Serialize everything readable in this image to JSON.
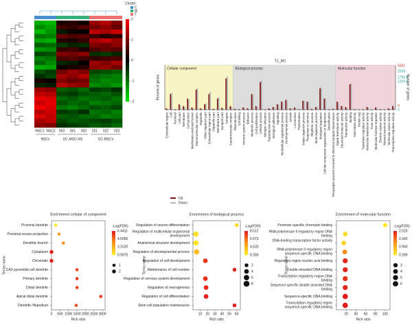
{
  "chart_data": [
    {
      "type": "heatmap",
      "columns": [
        "NSC1",
        "NSC2",
        "003",
        "001",
        "002",
        "021",
        "022",
        "023"
      ],
      "groups": [
        {
          "name": "NSCs",
          "count": 2
        },
        {
          "name": "UC-MSC-NS",
          "count": 3
        },
        {
          "name": "UC-MSCs",
          "count": 3
        }
      ],
      "column_clusters": [
        "C",
        "C",
        "M",
        "M",
        "M",
        "T",
        "T",
        "T"
      ],
      "cluster_legend": {
        "title": "Cluster",
        "items": [
          {
            "name": "C",
            "color": "#4a8fd0"
          },
          {
            "name": "M",
            "color": "#35b07a"
          },
          {
            "name": "T",
            "color": "#f07070"
          }
        ]
      },
      "clim": [
        -2,
        2
      ],
      "cticks": [
        2,
        1,
        0,
        -1,
        -2
      ],
      "matrix": [
        [
          -1.5,
          -1.6,
          0.2,
          0.3,
          0.1,
          1.2,
          1.4,
          1.0
        ],
        [
          -1.2,
          -1.4,
          0.5,
          0.4,
          0.6,
          0.9,
          1.1,
          0.8
        ],
        [
          -1.6,
          -1.3,
          -0.2,
          0.1,
          0.0,
          1.5,
          1.3,
          1.6
        ],
        [
          -1.0,
          -1.1,
          0.8,
          0.6,
          0.7,
          0.5,
          0.3,
          0.4
        ],
        [
          -1.4,
          -1.5,
          0.3,
          0.2,
          0.4,
          1.3,
          1.5,
          1.2
        ],
        [
          -0.8,
          -0.9,
          -0.5,
          -0.3,
          -0.4,
          1.0,
          0.9,
          1.1
        ],
        [
          -1.3,
          -1.2,
          0.4,
          0.5,
          0.2,
          0.6,
          0.8,
          0.7
        ],
        [
          -0.6,
          -0.7,
          1.0,
          0.9,
          1.1,
          -0.4,
          -0.5,
          -0.3
        ],
        [
          -1.1,
          -1.0,
          0.6,
          0.7,
          0.5,
          0.4,
          0.5,
          0.6
        ],
        [
          -0.9,
          -1.2,
          -0.3,
          -0.2,
          0.0,
          1.2,
          1.0,
          1.3
        ],
        [
          -1.5,
          -1.4,
          0.1,
          0.2,
          0.3,
          1.1,
          1.2,
          0.9
        ],
        [
          -0.7,
          -0.5,
          0.9,
          1.2,
          1.0,
          -0.6,
          -0.7,
          -0.8
        ],
        [
          -0.4,
          -0.6,
          1.3,
          1.1,
          1.4,
          -0.9,
          -1.0,
          -1.1
        ],
        [
          0.2,
          0.1,
          1.0,
          0.8,
          0.9,
          -1.0,
          -1.2,
          -1.1
        ],
        [
          -0.3,
          -0.2,
          1.4,
          1.2,
          1.1,
          -1.2,
          -1.1,
          -1.3
        ],
        [
          1.2,
          1.1,
          -0.8,
          -0.7,
          -0.9,
          -0.5,
          -0.6,
          -0.4
        ],
        [
          1.5,
          1.4,
          -0.6,
          -0.5,
          -0.7,
          -0.8,
          -0.9,
          -0.7
        ],
        [
          1.8,
          1.7,
          -0.9,
          -0.8,
          -1.0,
          -0.9,
          -0.8,
          -1.0
        ],
        [
          1.6,
          1.8,
          -0.7,
          -0.9,
          -0.8,
          -1.1,
          -1.0,
          -0.9
        ],
        [
          1.9,
          1.7,
          -1.0,
          -1.1,
          -0.9,
          -0.7,
          -0.8,
          -0.6
        ],
        [
          1.4,
          1.6,
          -0.5,
          -0.6,
          -0.4,
          -1.0,
          -0.9,
          -1.1
        ],
        [
          1.7,
          1.5,
          -0.8,
          -0.7,
          -0.9,
          -0.9,
          -1.1,
          -1.0
        ],
        [
          1.3,
          1.5,
          -0.6,
          -0.8,
          -0.7,
          -0.6,
          -0.5,
          -0.7
        ],
        [
          1.1,
          1.0,
          -0.4,
          -0.5,
          -0.6,
          -0.8,
          -0.7,
          -0.9
        ]
      ]
    },
    {
      "type": "bar",
      "title": "T1_M1",
      "ylabel": "Percent of genes",
      "y2label": "Number of genes",
      "right_labels": [
        "5581",
        "2558",
        "2790.5",
        "1269.6",
        "0",
        "0"
      ],
      "sections": [
        {
          "name": "Cellular component",
          "color": "#f8f4c4",
          "count": 16
        },
        {
          "name": "Biological process",
          "color": "#dcdcdc",
          "count": 24
        },
        {
          "name": "Molecular function",
          "color": "#f0d4dc",
          "count": 14
        }
      ],
      "categories": [
        "Extracellular region",
        "Cell",
        "Nucleoid",
        "Cell part",
        "Membrane",
        "Cell junction",
        "Membrane-enclosed lumen",
        "Macromolecular complex",
        "Organelle",
        "Other organism part",
        "Extracellular region part",
        "Organelle part",
        "Membrane part",
        "Synapse part",
        "Synapse",
        "Supramolecular complex",
        "Reproduction",
        "Cell killing",
        "Immune system process",
        "Behavior",
        "Metabolic process",
        "Cell proliferation",
        "Cellular process",
        "Nitrogen utilization",
        "Reproductive process",
        "Biological adhesion",
        "Signaling",
        "Multicellular organismal process",
        "Developmental process",
        "Growth",
        "Locomotion",
        "Pigmentation",
        "Single-organism process",
        "Response to stimulus",
        "Rhythmic process",
        "Multi-organism process",
        "Biological regulation",
        "Cellular component organization or biogenesis",
        "Detoxification",
        "Presynaptic process involved in chemical synaptic transmission",
        "Signal transducer activity",
        "Structural molecule activity",
        "Transporter activity",
        "Binding",
        "Antioxidant activity",
        "Protein tag",
        "Translation regulator activity",
        "Molecular transducer activity",
        "Toxin activity",
        "Molecular function regulator",
        "Electron carrier activity",
        "Nutrient reservoir activity",
        "Molecular carrier activity",
        "Transcription regulator activity"
      ],
      "ylim": [
        0,
        100
      ],
      "series": [
        {
          "name": "Up",
          "color": "#7a1518",
          "values": [
            3,
            35,
            1,
            12,
            8,
            25,
            5,
            45,
            3,
            12,
            35,
            2,
            25,
            4,
            70,
            8,
            2,
            1,
            5,
            3,
            35,
            8,
            62,
            1,
            3,
            6,
            12,
            18,
            22,
            3,
            5,
            1,
            20,
            18,
            2,
            6,
            48,
            25,
            1,
            2,
            18,
            8,
            6,
            57,
            1,
            0.5,
            1,
            6,
            0.5,
            5,
            1,
            0.5,
            3,
            8
          ]
        },
        {
          "name": "Down",
          "color": "#b4b4b4",
          "values": [
            2,
            38,
            0,
            10,
            6,
            22,
            4,
            48,
            2,
            14,
            40,
            1,
            28,
            3,
            75,
            6,
            1,
            0,
            4,
            2,
            33,
            7,
            65,
            0,
            2,
            5,
            11,
            17,
            20,
            2,
            4,
            0,
            19,
            17,
            1,
            5,
            50,
            24,
            0,
            1,
            16,
            9,
            5,
            59,
            0,
            0,
            1,
            5,
            0,
            4,
            0,
            0,
            2,
            7
          ]
        }
      ]
    },
    {
      "type": "bubble",
      "title": "Enrichment cellular of component",
      "xlabel": "Rich ratio",
      "ylabel": "Terms name",
      "terms": [
        "Proximal dendrite",
        "Proximal neuron projection",
        "Dendritic branch",
        "Cytoplasm",
        "Chromatin",
        "CA3 pyramidal cell dendrite",
        "Primary dendrite",
        "Distal dendrite",
        "Apical distal dendrite",
        "Dendritic filopodium"
      ],
      "values": [
        250,
        450,
        700,
        0,
        0,
        1500,
        1500,
        1500,
        2900,
        1450
      ],
      "sizes": [
        1,
        1,
        1,
        2,
        2,
        1,
        1,
        1,
        1,
        1
      ],
      "neglog_fdr": [
        1.2,
        3.5,
        3.8,
        6.4,
        6.2,
        5.5,
        5.8,
        5.6,
        5.9,
        5.4
      ],
      "xlim": [
        0,
        3150
      ],
      "xticks": [
        0,
        500,
        1000,
        1500,
        2000,
        2500,
        3000
      ],
      "colorbar_title": "-Log(FDR)",
      "clim": [
        0.9975,
        6.4411
      ],
      "cticks": [
        6.4411,
        4.5056,
        {
          "value": 3.152,
          "label": "3.1520"
        },
        0.9975
      ],
      "size_legend": [
        1,
        2
      ]
    },
    {
      "type": "bubble",
      "title": "Enrichment of biological process",
      "xlabel": "Rich ratio",
      "ylabel": "Terms name",
      "terms": [
        "Regulation of neuron differentiation",
        "Regulation of multicellular organismal development",
        "Anatomical structure development",
        "Regulation of developmental process",
        "Regulation of cell development",
        "Maintenance of cell number",
        "Regulation of nervous system development",
        "Regulation of neurogenesis",
        "Regulation of cell differentiation",
        "Stem cell population maintenance"
      ],
      "values": [
        60,
        4,
        4,
        5,
        17,
        57,
        17,
        18,
        18,
        57
      ],
      "sizes": [
        2,
        6,
        6,
        6,
        4,
        2,
        4,
        4,
        4,
        2
      ],
      "neglog_fdr": [
        1.0,
        0.8,
        0.5,
        2.5,
        7.5,
        8.3,
        7.8,
        8.0,
        8.2,
        8.4
      ],
      "xlim": [
        0,
        65
      ],
      "xticks": [
        10,
        20,
        30,
        40,
        50,
        60
      ],
      "colorbar_title": "-Log(FDR)",
      "clim": [
        0.283,
        8.512
      ],
      "cticks": [
        8.512,
        6.973,
        {
          "value": 4.63,
          "label": "4.630"
        },
        0.283
      ],
      "size_legend": [
        2,
        4,
        6,
        8
      ]
    },
    {
      "type": "bubble",
      "title": "Enrichment of molecular function",
      "xlabel": "Rich ratio",
      "ylabel": "Terms name",
      "terms": [
        "Promoter-specific chromatin binding",
        "RNA polymerase II regulatory region DNA binding",
        "DNA-binding transcription factor activity",
        "RNA polymerase II regulatory region sequence-specific DNA binding",
        "Regulatory region nucleic acid binding",
        "Double-stranded DNA binding",
        "Transcription regulatory region DNA binding",
        "Sequence-specific double-stranded DNA binding",
        "Sequence-specific DNA binding",
        "Transcription regulatory region sequence-specific DNA binding"
      ],
      "values": [
        100,
        18,
        15,
        17,
        18,
        18,
        18,
        18,
        18,
        18
      ],
      "sizes": [
        3,
        4,
        4,
        4,
        5,
        5,
        5,
        5,
        6,
        6
      ],
      "neglog_fdr": [
        0.3,
        0.5,
        0.6,
        1.5,
        2.4,
        2.4,
        2.3,
        2.4,
        2.5,
        2.5
      ],
      "xlim": [
        0,
        110
      ],
      "xticks": [
        20,
        40,
        60,
        80,
        100
      ],
      "colorbar_title": "-Log(FDR)",
      "clim": [
        0.289,
        2.52
      ],
      "cticks": [
        {
          "value": 2.52,
          "label": "2.520"
        },
        2.342,
        {
          "value": 0.94,
          "label": "0.940"
        },
        0.289
      ],
      "size_legend": [
        3,
        4,
        5,
        6
      ]
    }
  ]
}
